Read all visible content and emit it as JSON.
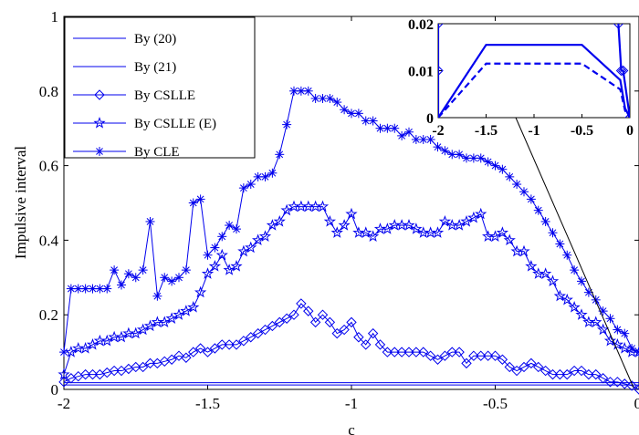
{
  "chart_data": {
    "type": "line",
    "xlabel": "c",
    "ylabel": "Impulsive interval",
    "xlim": [
      -2,
      0
    ],
    "ylim": [
      0,
      1
    ],
    "xticks": [
      "-2",
      "-1.5",
      "-1",
      "-0.5",
      "0"
    ],
    "yticks": [
      "0",
      "0.2",
      "0.4",
      "0.6",
      "0.8",
      "1"
    ],
    "color": "#0000ee",
    "legend_position": "top-left",
    "series": [
      {
        "name": "By (20)",
        "style": "solid-thin",
        "marker": "none",
        "x": [
          -2,
          -1.5,
          -0.5,
          0
        ],
        "y": [
          0.018,
          0.018,
          0.018,
          0.018
        ]
      },
      {
        "name": "By (21)",
        "style": "solid-thin",
        "marker": "none",
        "x": [
          -2,
          -1.5,
          -0.5,
          0
        ],
        "y": [
          0.012,
          0.012,
          0.012,
          0.012
        ]
      },
      {
        "name": "By CSLLE",
        "style": "solid",
        "marker": "diamond",
        "x": [
          -2,
          -1.975,
          -1.95,
          -1.925,
          -1.9,
          -1.875,
          -1.85,
          -1.825,
          -1.8,
          -1.775,
          -1.75,
          -1.725,
          -1.7,
          -1.675,
          -1.65,
          -1.625,
          -1.6,
          -1.575,
          -1.55,
          -1.525,
          -1.5,
          -1.475,
          -1.45,
          -1.425,
          -1.4,
          -1.375,
          -1.35,
          -1.325,
          -1.3,
          -1.275,
          -1.25,
          -1.225,
          -1.2,
          -1.175,
          -1.15,
          -1.125,
          -1.1,
          -1.075,
          -1.05,
          -1.025,
          -1,
          -0.975,
          -0.95,
          -0.925,
          -0.9,
          -0.875,
          -0.85,
          -0.825,
          -0.8,
          -0.775,
          -0.75,
          -0.725,
          -0.7,
          -0.675,
          -0.65,
          -0.625,
          -0.6,
          -0.575,
          -0.55,
          -0.525,
          -0.5,
          -0.475,
          -0.45,
          -0.425,
          -0.4,
          -0.375,
          -0.35,
          -0.325,
          -0.3,
          -0.275,
          -0.25,
          -0.225,
          -0.2,
          -0.175,
          -0.15,
          -0.125,
          -0.1,
          -0.075,
          -0.05,
          -0.025,
          0
        ],
        "y": [
          0.02,
          0.03,
          0.035,
          0.04,
          0.04,
          0.04,
          0.045,
          0.05,
          0.05,
          0.055,
          0.06,
          0.06,
          0.07,
          0.07,
          0.075,
          0.08,
          0.09,
          0.085,
          0.1,
          0.11,
          0.1,
          0.11,
          0.12,
          0.12,
          0.12,
          0.13,
          0.14,
          0.15,
          0.16,
          0.17,
          0.18,
          0.19,
          0.2,
          0.23,
          0.21,
          0.18,
          0.2,
          0.18,
          0.15,
          0.16,
          0.18,
          0.14,
          0.12,
          0.15,
          0.12,
          0.1,
          0.1,
          0.1,
          0.1,
          0.1,
          0.1,
          0.09,
          0.08,
          0.09,
          0.1,
          0.1,
          0.07,
          0.09,
          0.09,
          0.09,
          0.09,
          0.08,
          0.06,
          0.05,
          0.06,
          0.07,
          0.06,
          0.05,
          0.04,
          0.04,
          0.04,
          0.05,
          0.05,
          0.04,
          0.04,
          0.03,
          0.02,
          0.02,
          0.015,
          0.01,
          0.0
        ]
      },
      {
        "name": "By CSLLE (E)",
        "style": "solid",
        "marker": "star",
        "x": [
          -2,
          -1.975,
          -1.95,
          -1.925,
          -1.9,
          -1.875,
          -1.85,
          -1.825,
          -1.8,
          -1.775,
          -1.75,
          -1.725,
          -1.7,
          -1.675,
          -1.65,
          -1.625,
          -1.6,
          -1.575,
          -1.55,
          -1.525,
          -1.5,
          -1.475,
          -1.45,
          -1.425,
          -1.4,
          -1.375,
          -1.35,
          -1.325,
          -1.3,
          -1.275,
          -1.25,
          -1.225,
          -1.2,
          -1.175,
          -1.15,
          -1.125,
          -1.1,
          -1.075,
          -1.05,
          -1.025,
          -1,
          -0.975,
          -0.95,
          -0.925,
          -0.9,
          -0.875,
          -0.85,
          -0.825,
          -0.8,
          -0.775,
          -0.75,
          -0.725,
          -0.7,
          -0.675,
          -0.65,
          -0.625,
          -0.6,
          -0.575,
          -0.55,
          -0.525,
          -0.5,
          -0.475,
          -0.45,
          -0.425,
          -0.4,
          -0.375,
          -0.35,
          -0.325,
          -0.3,
          -0.275,
          -0.25,
          -0.225,
          -0.2,
          -0.175,
          -0.15,
          -0.125,
          -0.1,
          -0.075,
          -0.05,
          -0.025,
          0
        ],
        "y": [
          0.04,
          0.1,
          0.11,
          0.11,
          0.12,
          0.13,
          0.13,
          0.14,
          0.14,
          0.15,
          0.15,
          0.16,
          0.17,
          0.18,
          0.18,
          0.19,
          0.2,
          0.21,
          0.22,
          0.26,
          0.31,
          0.33,
          0.36,
          0.32,
          0.33,
          0.37,
          0.38,
          0.4,
          0.41,
          0.44,
          0.45,
          0.48,
          0.49,
          0.49,
          0.49,
          0.49,
          0.49,
          0.45,
          0.42,
          0.44,
          0.47,
          0.42,
          0.42,
          0.41,
          0.43,
          0.43,
          0.44,
          0.44,
          0.44,
          0.43,
          0.42,
          0.42,
          0.42,
          0.45,
          0.44,
          0.44,
          0.45,
          0.46,
          0.47,
          0.41,
          0.41,
          0.42,
          0.4,
          0.37,
          0.37,
          0.33,
          0.31,
          0.31,
          0.29,
          0.25,
          0.24,
          0.22,
          0.2,
          0.18,
          0.18,
          0.16,
          0.13,
          0.12,
          0.11,
          0.1,
          0.1
        ]
      },
      {
        "name": "By CLE",
        "style": "solid",
        "marker": "asterisk",
        "x": [
          -2,
          -1.975,
          -1.95,
          -1.925,
          -1.9,
          -1.875,
          -1.85,
          -1.825,
          -1.8,
          -1.775,
          -1.75,
          -1.725,
          -1.7,
          -1.675,
          -1.65,
          -1.625,
          -1.6,
          -1.575,
          -1.55,
          -1.525,
          -1.5,
          -1.475,
          -1.45,
          -1.425,
          -1.4,
          -1.375,
          -1.35,
          -1.325,
          -1.3,
          -1.275,
          -1.25,
          -1.225,
          -1.2,
          -1.175,
          -1.15,
          -1.125,
          -1.1,
          -1.075,
          -1.05,
          -1.025,
          -1,
          -0.975,
          -0.95,
          -0.925,
          -0.9,
          -0.875,
          -0.85,
          -0.825,
          -0.8,
          -0.775,
          -0.75,
          -0.725,
          -0.7,
          -0.675,
          -0.65,
          -0.625,
          -0.6,
          -0.575,
          -0.55,
          -0.525,
          -0.5,
          -0.475,
          -0.45,
          -0.425,
          -0.4,
          -0.375,
          -0.35,
          -0.325,
          -0.3,
          -0.275,
          -0.25,
          -0.225,
          -0.2,
          -0.175,
          -0.15,
          -0.125,
          -0.1,
          -0.075,
          -0.05,
          -0.025,
          0
        ],
        "y": [
          0.1,
          0.27,
          0.27,
          0.27,
          0.27,
          0.27,
          0.27,
          0.32,
          0.28,
          0.31,
          0.3,
          0.32,
          0.45,
          0.25,
          0.3,
          0.29,
          0.3,
          0.32,
          0.5,
          0.51,
          0.36,
          0.38,
          0.41,
          0.44,
          0.43,
          0.54,
          0.55,
          0.57,
          0.57,
          0.58,
          0.63,
          0.71,
          0.8,
          0.8,
          0.8,
          0.78,
          0.78,
          0.78,
          0.77,
          0.75,
          0.74,
          0.74,
          0.72,
          0.72,
          0.7,
          0.7,
          0.7,
          0.68,
          0.69,
          0.67,
          0.67,
          0.67,
          0.65,
          0.64,
          0.63,
          0.63,
          0.62,
          0.62,
          0.62,
          0.61,
          0.6,
          0.59,
          0.57,
          0.55,
          0.53,
          0.51,
          0.48,
          0.45,
          0.42,
          0.39,
          0.36,
          0.32,
          0.29,
          0.26,
          0.24,
          0.21,
          0.19,
          0.16,
          0.15,
          0.11,
          0.1
        ]
      }
    ],
    "inset": {
      "xlim": [
        -2,
        0
      ],
      "ylim": [
        0,
        0.02
      ],
      "xticks": [
        "-2",
        "-1.5",
        "-1",
        "-0.5",
        "0"
      ],
      "yticks": [
        "0",
        "0.01",
        "0.02"
      ],
      "series": [
        {
          "name": "By (20)",
          "style": "solid",
          "x": [
            -2,
            -1.5,
            -0.5,
            -0.1,
            -0.05,
            0
          ],
          "y": [
            0,
            0.0155,
            0.0155,
            0.008,
            0.002,
            0
          ]
        },
        {
          "name": "By (21)",
          "style": "dashed",
          "x": [
            -2,
            -1.5,
            -0.5,
            -0.1,
            -0.05,
            0
          ],
          "y": [
            0,
            0.0115,
            0.0115,
            0.006,
            0.0015,
            0
          ]
        },
        {
          "name": "By CSLLE",
          "style": "solid",
          "marker": "diamond",
          "x": [
            -2,
            -2,
            -2,
            -0.15,
            -0.12,
            -0.09,
            -0.07,
            0
          ],
          "y": [
            0.023,
            0.02,
            0.01,
            0.023,
            0.02,
            0.01,
            0.01,
            0
          ]
        }
      ]
    }
  }
}
